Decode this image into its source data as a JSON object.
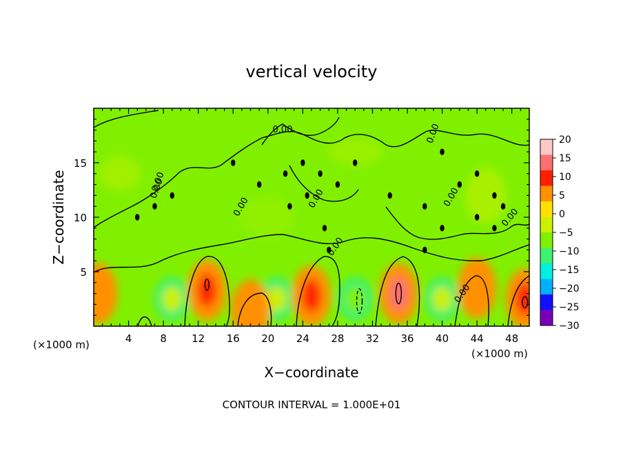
{
  "chart_data": {
    "type": "heatmap",
    "title": "vertical velocity",
    "xlabel": "X−coordinate",
    "ylabel": "Z−coordinate",
    "x_unit_left": "(×1000 m)",
    "x_unit_right": "(×1000 m)",
    "footer": "CONTOUR INTERVAL = 1.000E+01",
    "xlim": [
      0,
      50
    ],
    "ylim": [
      0,
      20
    ],
    "x_ticks": [
      4,
      8,
      12,
      16,
      20,
      24,
      28,
      32,
      36,
      40,
      44,
      48
    ],
    "y_ticks": [
      5,
      10,
      15
    ],
    "x_tick_labels": [
      "4",
      "8",
      "12",
      "16",
      "20",
      "24",
      "28",
      "32",
      "36",
      "40",
      "44",
      "48"
    ],
    "y_tick_labels": [
      "5",
      "10",
      "15"
    ],
    "colorbar": {
      "min": -30,
      "max": 20,
      "ticks": [
        20,
        15,
        10,
        5,
        0,
        -5,
        -10,
        -15,
        -20,
        -25,
        -30
      ],
      "tick_labels": [
        "20",
        "15",
        "10",
        "5",
        "0",
        "−5",
        "−10",
        "−15",
        "−20",
        "−25",
        "−30"
      ],
      "colors": [
        "#7a00b8",
        "#1010ff",
        "#00b0ff",
        "#00f0e0",
        "#40f070",
        "#80f000",
        "#ccf000",
        "#ffe000",
        "#ff9000",
        "#ff2000",
        "#ff7070",
        "#ffc8c8"
      ]
    },
    "background_value": 0,
    "updrafts": [
      {
        "x": 13.0,
        "z": 3.3,
        "peak": 10
      },
      {
        "x": 25.0,
        "z": 2.8,
        "peak": 8
      },
      {
        "x": 35.0,
        "z": 3.0,
        "peak": 12
      },
      {
        "x": 44.0,
        "z": 3.5,
        "peak": 7
      },
      {
        "x": 49.5,
        "z": 2.5,
        "peak": 9
      },
      {
        "x": 18.0,
        "z": 1.5,
        "peak": 4
      },
      {
        "x": 0.5,
        "z": 3.0,
        "peak": 5
      }
    ],
    "downdrafts": [
      {
        "x": 9.0,
        "z": 2.5,
        "peak": -4
      },
      {
        "x": 21.0,
        "z": 2.5,
        "peak": -4
      },
      {
        "x": 30.0,
        "z": 2.5,
        "peak": -6
      },
      {
        "x": 40.0,
        "z": 2.5,
        "peak": -5
      }
    ],
    "contour_labels": [
      "0.00",
      "0.00",
      "0.00",
      "0.00",
      "0.00",
      "0.00",
      "0.00",
      "0.00",
      "0.00",
      "0.00"
    ]
  }
}
